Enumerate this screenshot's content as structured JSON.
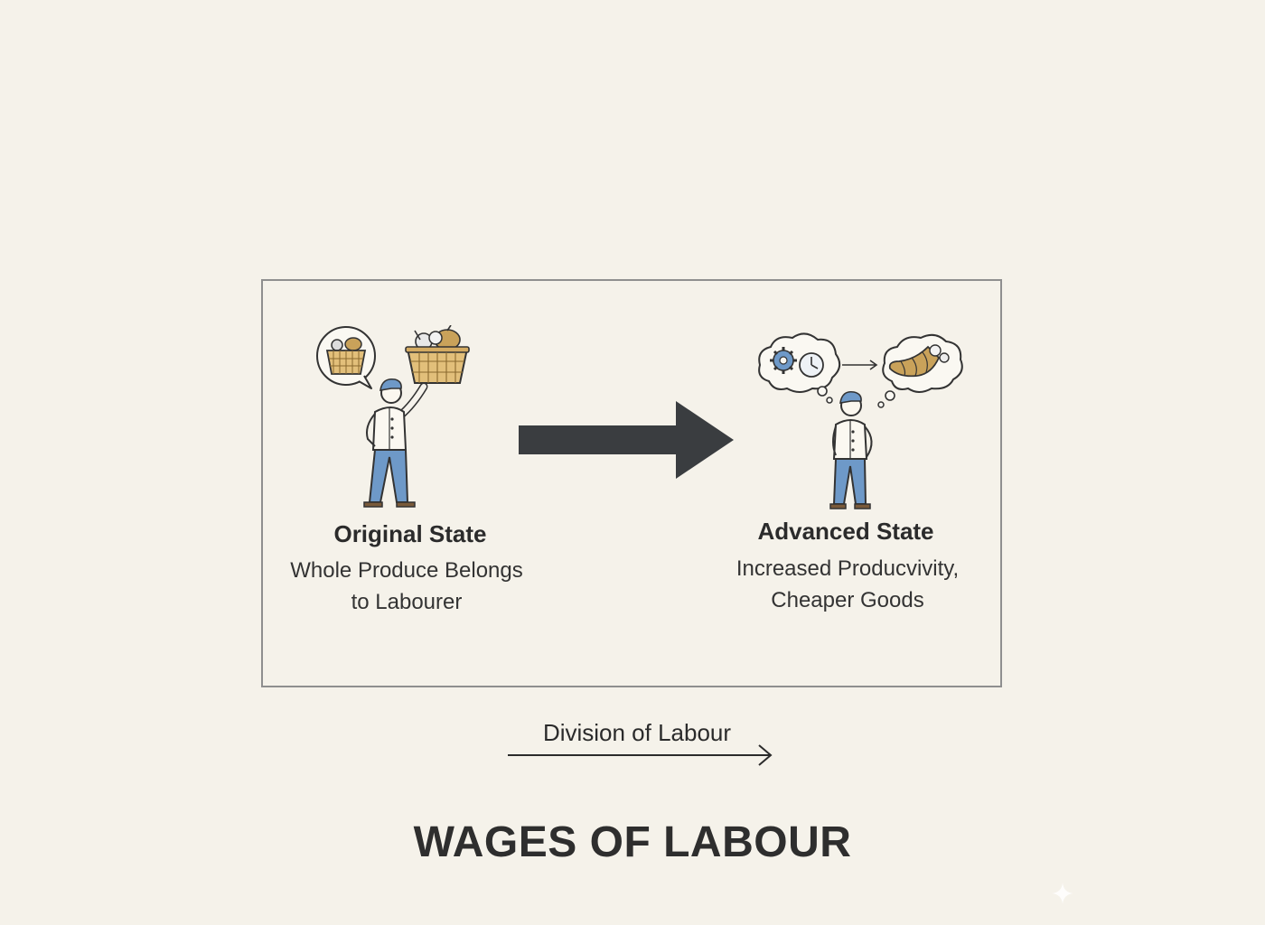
{
  "diagram": {
    "title": "WAGES OF LABOUR",
    "flow_label": "Division of Labour",
    "left_state": {
      "title": "Original State",
      "description_line1": "Whole Produce Belongs",
      "description_line2": "to Labourer",
      "icon": "worker-holding-basket-icon"
    },
    "right_state": {
      "title": "Advanced State",
      "description_line1": "Increased Producvivity,",
      "description_line2": "Cheaper Goods",
      "icon": "worker-thinking-cornucopia-icon"
    },
    "colors": {
      "background": "#f5f2ea",
      "arrow": "#3a3d40",
      "accent_blue": "#6e99c8",
      "accent_gold": "#c9a25a",
      "frame": "#8f8f8f"
    }
  }
}
